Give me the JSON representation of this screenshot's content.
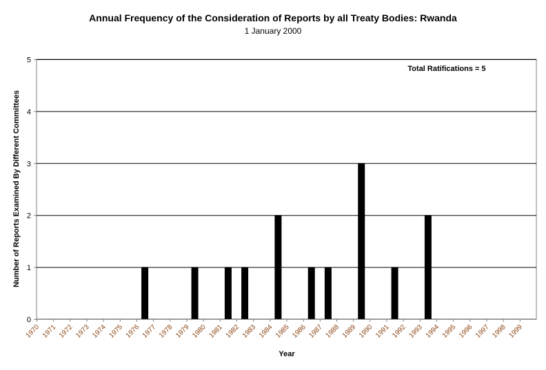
{
  "chart_data": {
    "type": "bar",
    "title": "Annual Frequency of the Consideration of Reports by all Treaty Bodies: Rwanda",
    "subtitle": "1 January 2000",
    "xlabel": "Year",
    "ylabel": "Number of Reports Examined By Different Committees",
    "annotation": "Total Ratifications = 5",
    "ylim": [
      0,
      5
    ],
    "yticks": [
      0,
      1,
      2,
      3,
      4,
      5
    ],
    "grid": true,
    "categories": [
      "1970",
      "1971",
      "1972",
      "1973",
      "1974",
      "1975",
      "1976",
      "1977",
      "1978",
      "1979",
      "1980",
      "1981",
      "1982",
      "1983",
      "1984",
      "1985",
      "1986",
      "1987",
      "1988",
      "1989",
      "1990",
      "1991",
      "1992",
      "1993",
      "1994",
      "1995",
      "1996",
      "1997",
      "1998",
      "1999"
    ],
    "values": [
      0,
      0,
      0,
      0,
      0,
      0,
      1,
      0,
      0,
      1,
      0,
      1,
      1,
      0,
      2,
      0,
      1,
      1,
      0,
      3,
      0,
      1,
      0,
      2,
      0,
      0,
      0,
      0,
      0,
      0
    ],
    "colors": {
      "bar": "#000000",
      "grid": "#000000",
      "axis": "#808080",
      "tick_label": "#8b4513"
    }
  }
}
